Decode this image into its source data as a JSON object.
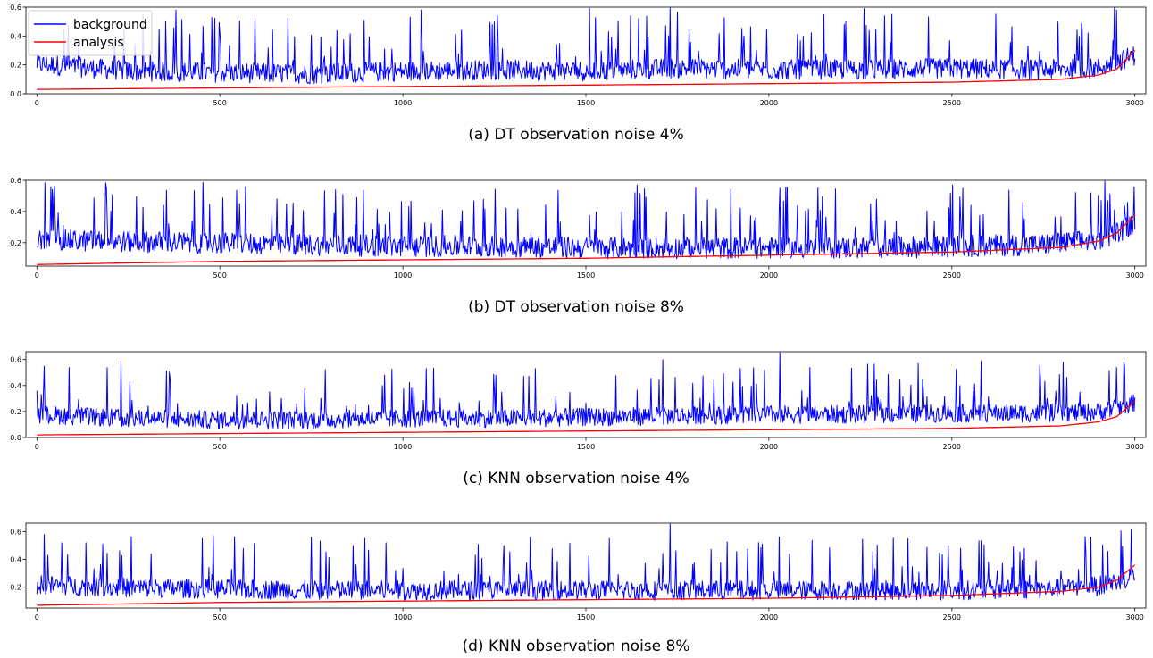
{
  "legend": {
    "entries": [
      {
        "label": "background",
        "color": "#0000ff"
      },
      {
        "label": "analysis",
        "color": "#ff0000"
      }
    ]
  },
  "chart_data": [
    {
      "type": "line",
      "caption": "(a) DT observation noise 4%",
      "xlim": [
        -30,
        3030
      ],
      "ylim": [
        0.0,
        0.6
      ],
      "xticks": [
        0,
        500,
        1000,
        1500,
        2000,
        2500,
        3000
      ],
      "yticks": [
        0.0,
        0.2,
        0.4,
        0.6
      ],
      "ytick_labels": [
        "0.0",
        "0.2",
        "0.4",
        "0.6"
      ],
      "series": [
        {
          "name": "background",
          "color": "#0000ff",
          "x": [
            0,
            250,
            500,
            750,
            1000,
            1250,
            1500,
            1750,
            2000,
            2250,
            2500,
            2750,
            2900,
            3000
          ],
          "y": [
            0.2,
            0.15,
            0.14,
            0.13,
            0.15,
            0.16,
            0.15,
            0.17,
            0.16,
            0.16,
            0.17,
            0.16,
            0.17,
            0.26
          ],
          "spikes": [
            [
              380,
              0.58
            ],
            [
              1050,
              0.58
            ],
            [
              1510,
              0.59
            ],
            [
              1730,
              0.6
            ],
            [
              2260,
              0.59
            ],
            [
              2950,
              0.58
            ]
          ]
        },
        {
          "name": "analysis",
          "color": "#ff0000",
          "x": [
            0,
            500,
            1000,
            1500,
            2000,
            2500,
            2800,
            2900,
            2950,
            3000
          ],
          "y": [
            0.03,
            0.04,
            0.05,
            0.06,
            0.07,
            0.08,
            0.1,
            0.13,
            0.17,
            0.3
          ]
        }
      ]
    },
    {
      "type": "line",
      "caption": "(b) DT observation noise 8%",
      "xlim": [
        -30,
        3030
      ],
      "ylim": [
        0.05,
        0.6
      ],
      "xticks": [
        0,
        500,
        1000,
        1500,
        2000,
        2500,
        3000
      ],
      "yticks": [
        0.2,
        0.4,
        0.6
      ],
      "ytick_labels": [
        "0.2",
        "0.4",
        "0.6"
      ],
      "series": [
        {
          "name": "background",
          "color": "#0000ff",
          "x": [
            0,
            250,
            500,
            750,
            1000,
            1250,
            1500,
            1750,
            2000,
            2250,
            2500,
            2750,
            2900,
            3000
          ],
          "y": [
            0.21,
            0.2,
            0.19,
            0.18,
            0.17,
            0.17,
            0.16,
            0.16,
            0.16,
            0.16,
            0.17,
            0.18,
            0.21,
            0.31
          ],
          "spikes": [
            [
              190,
              0.55
            ],
            [
              570,
              0.56
            ],
            [
              1640,
              0.57
            ],
            [
              2030,
              0.55
            ],
            [
              2530,
              0.55
            ],
            [
              2880,
              0.52
            ]
          ]
        },
        {
          "name": "analysis",
          "color": "#ff0000",
          "x": [
            0,
            500,
            1000,
            1500,
            2000,
            2500,
            2800,
            2900,
            2950,
            3000
          ],
          "y": [
            0.06,
            0.08,
            0.09,
            0.1,
            0.12,
            0.14,
            0.17,
            0.21,
            0.26,
            0.38
          ]
        }
      ]
    },
    {
      "type": "line",
      "caption": "(c) KNN observation noise 4%",
      "xlim": [
        -30,
        3030
      ],
      "ylim": [
        0.0,
        0.66
      ],
      "xticks": [
        0,
        500,
        1000,
        1500,
        2000,
        2500,
        3000
      ],
      "yticks": [
        0.0,
        0.2,
        0.4,
        0.6
      ],
      "ytick_labels": [
        "0.0",
        "0.2",
        "0.4",
        "0.6"
      ],
      "series": [
        {
          "name": "background",
          "color": "#0000ff",
          "x": [
            0,
            250,
            500,
            750,
            1000,
            1250,
            1500,
            1750,
            2000,
            2250,
            2500,
            2750,
            2900,
            3000
          ],
          "y": [
            0.17,
            0.14,
            0.13,
            0.13,
            0.14,
            0.14,
            0.15,
            0.16,
            0.17,
            0.17,
            0.18,
            0.18,
            0.19,
            0.26
          ],
          "spikes": [
            [
              230,
              0.59
            ],
            [
              1710,
              0.6
            ],
            [
              2030,
              0.66
            ],
            [
              2580,
              0.59
            ],
            [
              2950,
              0.54
            ]
          ]
        },
        {
          "name": "analysis",
          "color": "#ff0000",
          "x": [
            0,
            500,
            1000,
            1500,
            2000,
            2500,
            2800,
            2900,
            2950,
            3000
          ],
          "y": [
            0.02,
            0.03,
            0.04,
            0.05,
            0.06,
            0.07,
            0.09,
            0.12,
            0.16,
            0.28
          ]
        }
      ]
    },
    {
      "type": "line",
      "caption": "(d) KNN observation noise 8%",
      "xlim": [
        -30,
        3030
      ],
      "ylim": [
        0.05,
        0.66
      ],
      "xticks": [
        0,
        500,
        1000,
        1500,
        2000,
        2500,
        3000
      ],
      "yticks": [
        0.2,
        0.4,
        0.6
      ],
      "ytick_labels": [
        "0.2",
        "0.4",
        "0.6"
      ],
      "series": [
        {
          "name": "background",
          "color": "#0000ff",
          "x": [
            0,
            250,
            500,
            750,
            1000,
            1250,
            1500,
            1750,
            2000,
            2250,
            2500,
            2750,
            2900,
            3000
          ],
          "y": [
            0.21,
            0.19,
            0.18,
            0.17,
            0.17,
            0.17,
            0.17,
            0.17,
            0.17,
            0.17,
            0.17,
            0.18,
            0.2,
            0.27
          ],
          "spikes": [
            [
              1730,
              0.66
            ],
            [
              2990,
              0.62
            ],
            [
              2880,
              0.56
            ],
            [
              750,
              0.56
            ]
          ]
        },
        {
          "name": "analysis",
          "color": "#ff0000",
          "x": [
            0,
            500,
            1000,
            1500,
            2000,
            2500,
            2800,
            2900,
            2950,
            3000
          ],
          "y": [
            0.07,
            0.09,
            0.1,
            0.11,
            0.12,
            0.14,
            0.17,
            0.2,
            0.25,
            0.36
          ]
        }
      ]
    }
  ]
}
